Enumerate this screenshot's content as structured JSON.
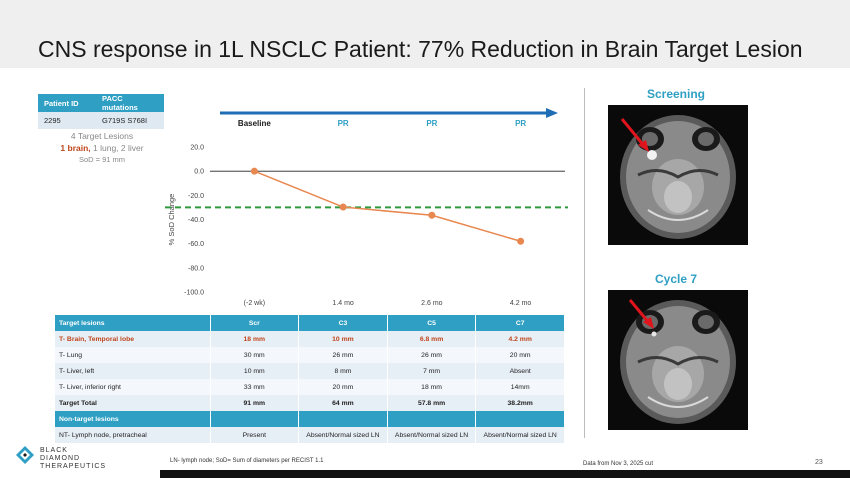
{
  "title": "CNS response in 1L NSCLC Patient: 77% Reduction in Brain Target Lesion",
  "patient_table": {
    "headers": [
      "Patient ID",
      "PACC mutations"
    ],
    "row": [
      "2295",
      "G719S S768I"
    ]
  },
  "lesion_summary": {
    "line1": "4 Target Lesions",
    "brain": "1 brain,",
    "rest": " 1 lung, 2 liver",
    "sod": "SoD = 91 mm"
  },
  "chart_data": {
    "type": "line",
    "timeline": [
      "Baseline",
      "PR",
      "PR",
      "PR"
    ],
    "categories": [
      "(-2 wk)",
      "1.4 mo",
      "2.6 mo",
      "4.2 mo"
    ],
    "series": [
      {
        "name": "% SoD Change",
        "values": [
          0,
          -29.7,
          -36.5,
          -58.0
        ]
      }
    ],
    "ylabel": "% SoD Change",
    "ylim": [
      -100,
      20
    ],
    "yticks": [
      20,
      0,
      -20,
      -40,
      -60,
      -80,
      -100
    ],
    "ytick_labels": [
      "20.0",
      "0.0",
      "-20.0",
      "-40.0",
      "-60.0",
      "-80.0",
      "-100.0"
    ],
    "threshold": -30,
    "colors": {
      "line": "#e8874f",
      "threshold": "#2e9a3e",
      "arrow": "#1f6db4",
      "pr": "#2f9fc4"
    }
  },
  "lesion_table": {
    "headers": [
      "Target lesions",
      "Scr",
      "C3",
      "C5",
      "C7"
    ],
    "rows": [
      [
        "T- Brain, Temporal lobe",
        "18 mm",
        "10 mm",
        "6.8 mm",
        "4.2 mm"
      ],
      [
        "T- Lung",
        "30 mm",
        "26 mm",
        "26 mm",
        "20 mm"
      ],
      [
        "T- Liver, left",
        "10 mm",
        "8 mm",
        "7 mm",
        "Absent"
      ],
      [
        "T- Liver, inferior right",
        "33 mm",
        "20 mm",
        "18 mm",
        "14mm"
      ],
      [
        "Target Total",
        "91 mm",
        "64 mm",
        "57.8 mm",
        "38.2mm"
      ]
    ],
    "nontarget_header": "Non-target lesions",
    "nontarget_row": [
      "NT- Lymph node, pretracheal",
      "Present",
      "Absent/Normal sized LN",
      "Absent/Normal sized LN",
      "Absent/Normal sized LN"
    ]
  },
  "scans": {
    "top_label": "Screening",
    "bottom_label": "Cycle 7"
  },
  "logo": {
    "line1": "BLACK",
    "line2": "DIAMOND",
    "line3": "THERAPEUTICS"
  },
  "footnote": "LN- lymph node; SoD= Sum of diameters per RECIST 1.1",
  "data_cut": "Data from Nov 3, 2025 cut",
  "page_number": "23"
}
